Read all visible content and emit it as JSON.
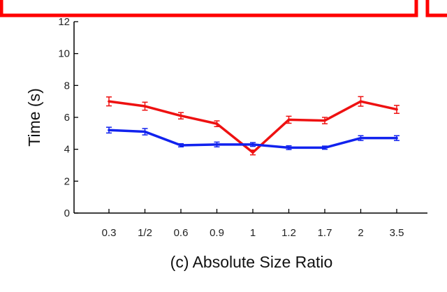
{
  "chart_data": {
    "type": "line",
    "title": "",
    "xlabel": "(c) Absolute Size Ratio",
    "ylabel": "Time (s)",
    "categories": [
      "0.3",
      "1/2",
      "0.6",
      "0.9",
      "1",
      "1.2",
      "1.7",
      "2",
      "3.5"
    ],
    "ylim": [
      0,
      12
    ],
    "yticks": [
      "0",
      "2",
      "4",
      "6",
      "8",
      "10",
      "12"
    ],
    "grid": false,
    "legend": "none visible",
    "series": [
      {
        "color": "#ee1111",
        "values": [
          7.0,
          6.7,
          6.1,
          5.6,
          3.8,
          5.85,
          5.8,
          7.0,
          6.5
        ],
        "errors": [
          0.28,
          0.25,
          0.2,
          0.18,
          0.15,
          0.22,
          0.2,
          0.3,
          0.25
        ]
      },
      {
        "color": "#1122ee",
        "values": [
          5.2,
          5.1,
          4.25,
          4.3,
          4.3,
          4.1,
          4.1,
          4.7,
          4.7
        ],
        "errors": [
          0.18,
          0.2,
          0.1,
          0.15,
          0.12,
          0.12,
          0.1,
          0.15,
          0.15
        ]
      }
    ],
    "frame_color": "#ff0000"
  }
}
